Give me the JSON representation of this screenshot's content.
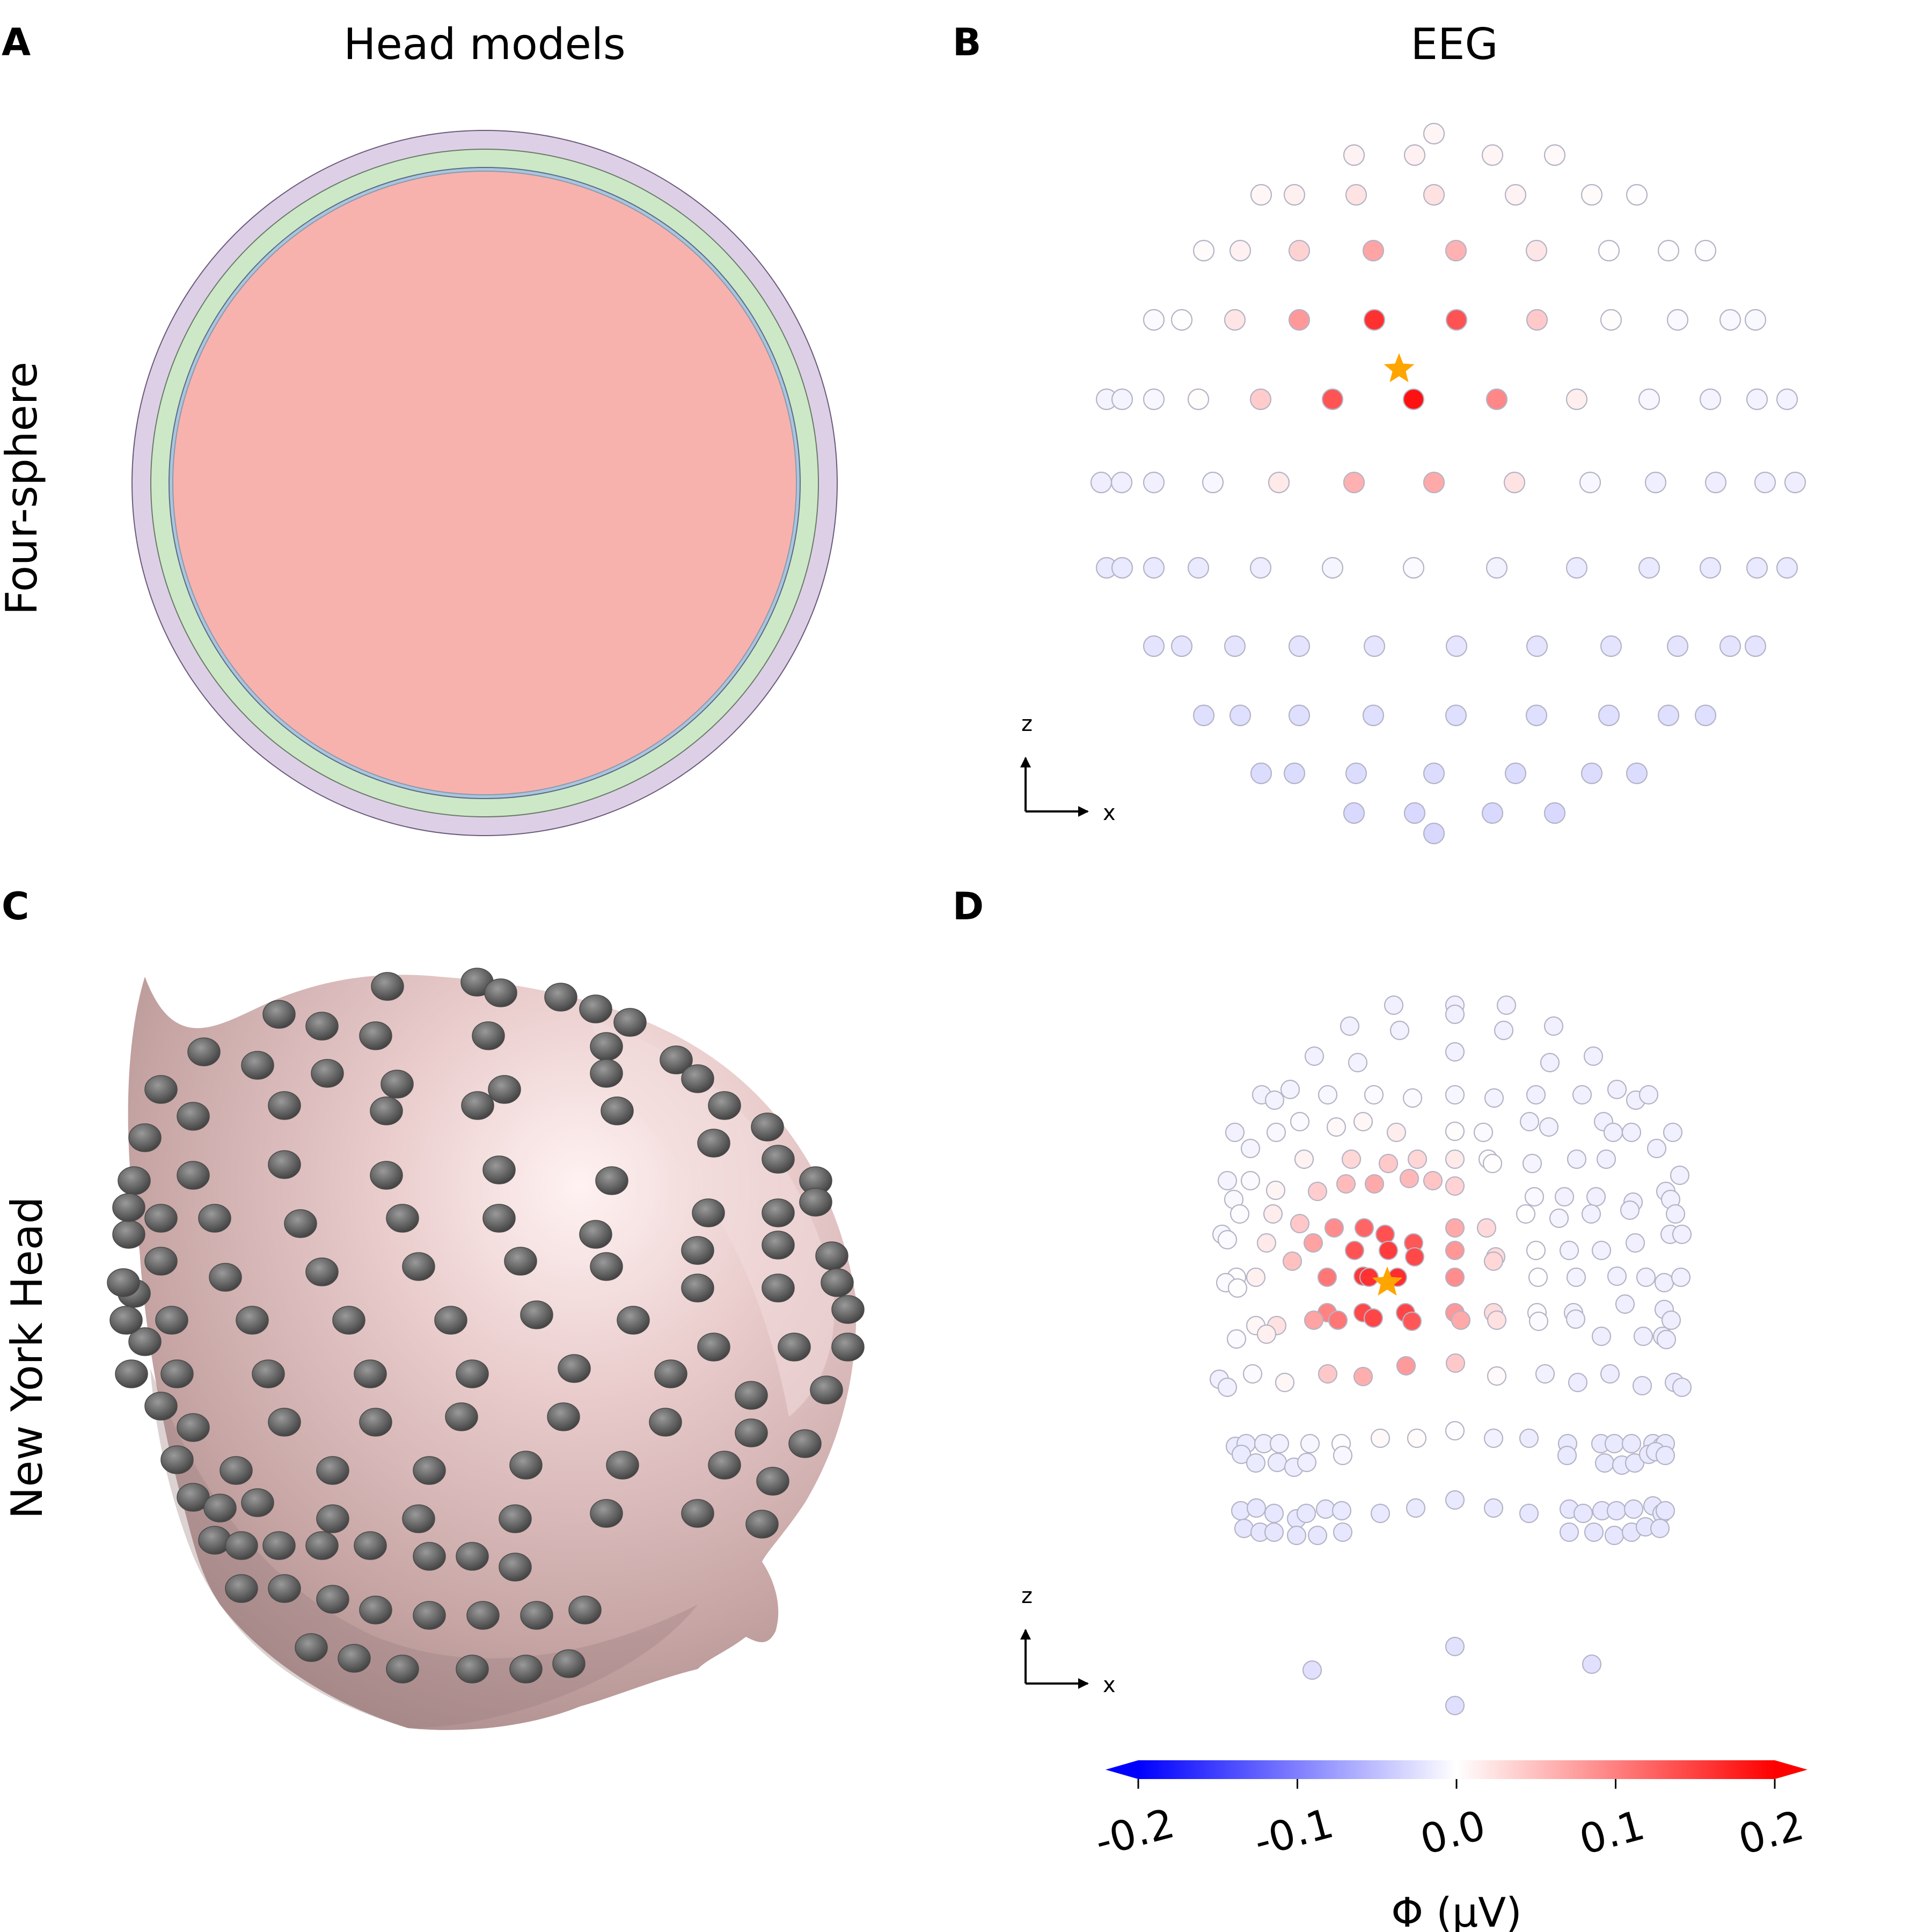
{
  "panels": {
    "A": {
      "letter": "A",
      "title": "Head models"
    },
    "B": {
      "letter": "B",
      "title": "EEG"
    },
    "C": {
      "letter": "C"
    },
    "D": {
      "letter": "D"
    }
  },
  "rows": {
    "top": "Four-sphere",
    "bottom": "New York Head"
  },
  "four_sphere": {
    "layers": [
      {
        "name": "scalp",
        "color": "#ddd0e6"
      },
      {
        "name": "skull",
        "color": "#cde8c6"
      },
      {
        "name": "csf",
        "color": "#a9c6dc"
      },
      {
        "name": "brain",
        "color": "#f8b2ad"
      }
    ]
  },
  "axes_indicator": {
    "vertical": "z",
    "horizontal": "x"
  },
  "source_marker": {
    "shape": "star",
    "color": "#ffa500"
  },
  "colorbar": {
    "cmap": "bwr",
    "min": -0.2,
    "max": 0.2,
    "ticks": [
      "-0.2",
      "-0.1",
      "0.0",
      "0.1",
      "0.2"
    ],
    "label": "Φ (μV)",
    "extend": "both"
  },
  "head_model": {
    "surface_color": "#dcbcbc",
    "electrode_color": "#6f6f6f"
  }
}
